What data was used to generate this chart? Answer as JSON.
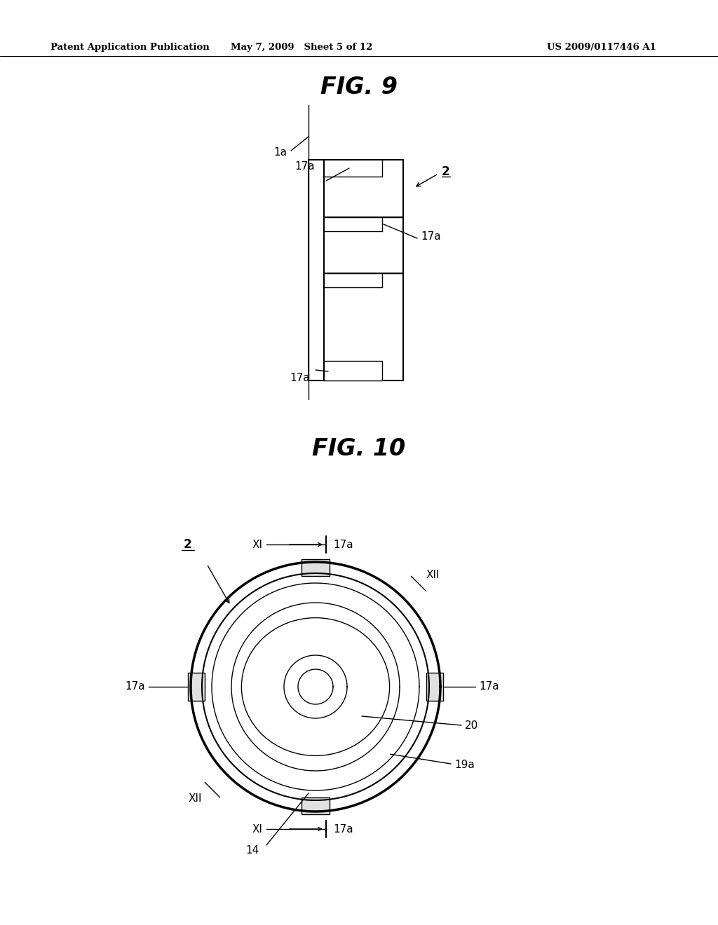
{
  "bg_color": "#ffffff",
  "line_color": "#000000",
  "header_left": "Patent Application Publication",
  "header_mid": "May 7, 2009   Sheet 5 of 12",
  "header_right": "US 2009/0117446 A1",
  "fig9_title": "FIG. 9",
  "fig10_title": "FIG. 10"
}
